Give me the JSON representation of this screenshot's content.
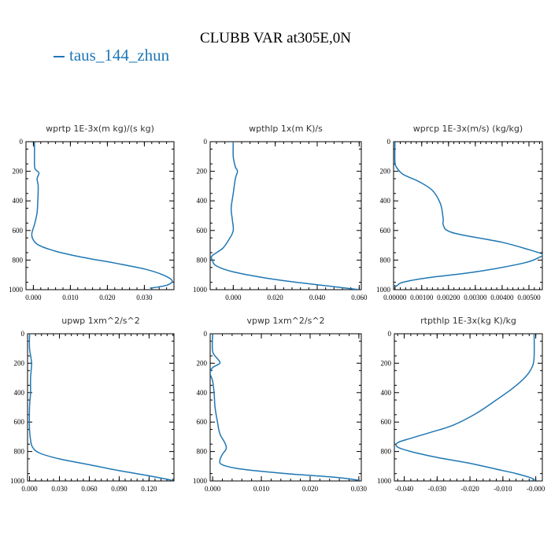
{
  "figure": {
    "title": "CLUBB VAR at305E,0N",
    "legend": [
      {
        "name": "taus_144_zhun",
        "color": "#1f77b4"
      }
    ]
  },
  "chart_data": [
    {
      "type": "line",
      "title": "wprtp  1E-3x(m kg)/(s kg)",
      "xlim": [
        -0.002,
        0.038
      ],
      "ylim": [
        1000,
        0
      ],
      "xticks": [
        0.0,
        0.01,
        0.02,
        0.03
      ],
      "xtick_labels": [
        "0.000",
        "0.010",
        "0.020",
        "0.030"
      ],
      "yticks": [
        0,
        200,
        400,
        600,
        800,
        1000
      ],
      "ytick_labels": [
        "0",
        "200",
        "400",
        "600",
        "800",
        "1000"
      ],
      "series": [
        {
          "name": "taus_144_zhun",
          "x": [
            0.0003,
            0.0003,
            0.0004,
            0.0015,
            0.001,
            0.0013,
            0.0012,
            0.001,
            0.0004,
            -0.0004,
            -0.0001,
            0.0015,
            0.006,
            0.013,
            0.022,
            0.03,
            0.035,
            0.0375,
            0.036,
            0.0315
          ],
          "y": [
            0,
            100,
            180,
            210,
            250,
            300,
            400,
            480,
            550,
            620,
            660,
            700,
            740,
            780,
            820,
            860,
            900,
            940,
            970,
            990
          ]
        }
      ]
    },
    {
      "type": "line",
      "title": "wpthlp  1x(m K)/s",
      "xlim": [
        -0.011,
        0.061
      ],
      "ylim": [
        1000,
        0
      ],
      "xticks": [
        0.0,
        0.02,
        0.04,
        0.06
      ],
      "xtick_labels": [
        "0.000",
        "0.020",
        "0.040",
        "0.060"
      ],
      "yticks": [
        0,
        200,
        400,
        600,
        800,
        1000
      ],
      "ytick_labels": [
        "0",
        "200",
        "400",
        "600",
        "800",
        "1000"
      ],
      "series": [
        {
          "name": "taus_144_zhun",
          "x": [
            0.0,
            0.0,
            0.001,
            0.002,
            0.001,
            0.0,
            -0.001,
            -0.0005,
            0.0,
            -0.002,
            -0.005,
            -0.01,
            -0.01,
            -0.008,
            0.0,
            0.015,
            0.03,
            0.045,
            0.06
          ],
          "y": [
            0,
            100,
            170,
            200,
            250,
            350,
            450,
            520,
            600,
            660,
            720,
            770,
            800,
            840,
            880,
            920,
            950,
            975,
            1000
          ]
        }
      ]
    },
    {
      "type": "line",
      "title": "wprcp  1E-3x(m/s) (kg/kg)",
      "xlim": [
        -5e-05,
        0.0055
      ],
      "ylim": [
        1000,
        0
      ],
      "xticks": [
        0.0,
        0.001,
        0.002,
        0.003,
        0.004,
        0.005
      ],
      "xtick_labels": [
        "0.00000",
        "0.00100",
        "0.00200",
        "0.00300",
        "0.00400",
        "0.00500"
      ],
      "yticks": [
        0,
        200,
        400,
        600,
        800,
        1000
      ],
      "ytick_labels": [
        "0",
        "200",
        "400",
        "600",
        "800",
        "1000"
      ],
      "series": [
        {
          "name": "taus_144_zhun",
          "x": [
            0.0,
            0.0,
            5e-05,
            0.0003,
            0.0009,
            0.0014,
            0.0017,
            0.0018,
            0.0018,
            0.00195,
            0.0025,
            0.004,
            0.005,
            0.0055,
            0.0054,
            0.0048,
            0.003,
            0.0012,
            0.0003,
            0.0001,
            0.0
          ],
          "y": [
            0,
            130,
            170,
            220,
            270,
            330,
            420,
            520,
            560,
            600,
            630,
            680,
            730,
            760,
            780,
            820,
            880,
            920,
            950,
            970,
            980
          ]
        }
      ]
    },
    {
      "type": "line",
      "title": "upwp  1xm^2/s^2",
      "xlim": [
        -0.002,
        0.145
      ],
      "ylim": [
        1000,
        0
      ],
      "xticks": [
        0.0,
        0.03,
        0.06,
        0.09,
        0.12
      ],
      "xtick_labels": [
        "0.000",
        "0.030",
        "0.060",
        "0.090",
        "0.120"
      ],
      "yticks": [
        0,
        200,
        400,
        600,
        800,
        1000
      ],
      "ytick_labels": [
        "0",
        "200",
        "400",
        "600",
        "800",
        "1000"
      ],
      "series": [
        {
          "name": "taus_144_zhun",
          "x": [
            0.0,
            0.0,
            0.002,
            0.001,
            0.001,
            0.0,
            0.0,
            0.001,
            0.003,
            0.01,
            0.03,
            0.06,
            0.09,
            0.12,
            0.143
          ],
          "y": [
            0,
            100,
            200,
            300,
            400,
            500,
            650,
            720,
            770,
            810,
            850,
            890,
            930,
            965,
            995
          ]
        }
      ]
    },
    {
      "type": "line",
      "title": "vpwp  1xm^2/s^2",
      "xlim": [
        -0.0005,
        0.0305
      ],
      "ylim": [
        1000,
        0
      ],
      "xticks": [
        0.0,
        0.01,
        0.02,
        0.03
      ],
      "xtick_labels": [
        "0.000",
        "0.010",
        "0.020",
        "0.030"
      ],
      "yticks": [
        0,
        200,
        400,
        600,
        800,
        1000
      ],
      "ytick_labels": [
        "0",
        "200",
        "400",
        "600",
        "800",
        "1000"
      ],
      "series": [
        {
          "name": "taus_144_zhun",
          "x": [
            0.0,
            0.0,
            0.001,
            0.0015,
            0.0,
            -0.0005,
            0.0,
            0.0003,
            0.0005,
            0.001,
            0.0015,
            0.0025,
            0.0028,
            0.002,
            0.0015,
            0.002,
            0.006,
            0.015,
            0.025,
            0.03
          ],
          "y": [
            0,
            120,
            170,
            200,
            230,
            270,
            320,
            400,
            500,
            600,
            680,
            740,
            780,
            820,
            860,
            890,
            920,
            950,
            975,
            995
          ]
        }
      ]
    },
    {
      "type": "line",
      "title": "rtpthlp  1E-3x(kg K)/kg",
      "xlim": [
        -0.043,
        0.002
      ],
      "ylim": [
        1000,
        0
      ],
      "xticks": [
        -0.04,
        -0.03,
        -0.02,
        -0.01,
        0.0
      ],
      "xtick_labels": [
        "-0.040",
        "-0.030",
        "-0.020",
        "-0.010",
        "-0.000"
      ],
      "yticks": [
        0,
        200,
        400,
        600,
        800,
        1000
      ],
      "ytick_labels": [
        "0",
        "200",
        "400",
        "600",
        "800",
        "1000"
      ],
      "series": [
        {
          "name": "taus_144_zhun",
          "x": [
            -0.0005,
            -0.0005,
            -0.001,
            -0.003,
            -0.007,
            -0.012,
            -0.018,
            -0.025,
            -0.032,
            -0.038,
            -0.042,
            -0.042,
            -0.038,
            -0.03,
            -0.02,
            -0.012,
            -0.006,
            -0.002,
            -0.0005,
            -0.0015
          ],
          "y": [
            0,
            150,
            220,
            290,
            370,
            450,
            540,
            620,
            670,
            710,
            740,
            770,
            800,
            840,
            880,
            920,
            950,
            975,
            990,
            1000
          ]
        }
      ]
    }
  ]
}
